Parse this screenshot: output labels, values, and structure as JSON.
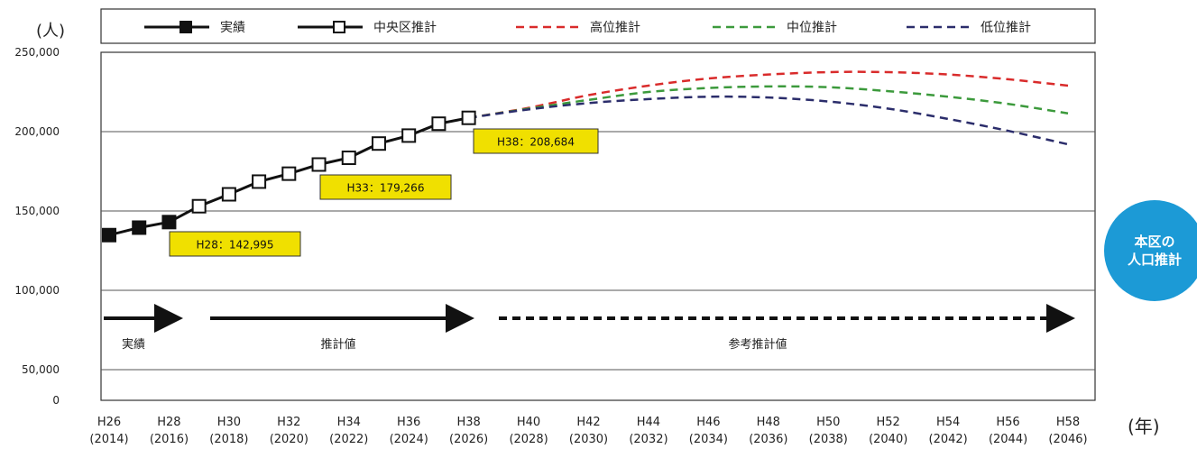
{
  "chart_data": {
    "type": "line",
    "y_unit_label": "(人)",
    "x_unit_label": "(年)",
    "ylim": [
      0,
      250000
    ],
    "y_ticks": [
      {
        "value": 0,
        "label": "0"
      },
      {
        "value": 50000,
        "label": "50,000"
      },
      {
        "value": 100000,
        "label": "100,000"
      },
      {
        "value": 150000,
        "label": "150,000"
      },
      {
        "value": 200000,
        "label": "200,000"
      },
      {
        "value": 250000,
        "label": "250,000"
      }
    ],
    "x_ticks": [
      {
        "era": "H26",
        "year": "(2014)"
      },
      {
        "era": "H28",
        "year": "(2016)"
      },
      {
        "era": "H30",
        "year": "(2018)"
      },
      {
        "era": "H32",
        "year": "(2020)"
      },
      {
        "era": "H34",
        "year": "(2022)"
      },
      {
        "era": "H36",
        "year": "(2024)"
      },
      {
        "era": "H38",
        "year": "(2026)"
      },
      {
        "era": "H40",
        "year": "(2028)"
      },
      {
        "era": "H42",
        "year": "(2030)"
      },
      {
        "era": "H44",
        "year": "(2032)"
      },
      {
        "era": "H46",
        "year": "(2034)"
      },
      {
        "era": "H48",
        "year": "(2036)"
      },
      {
        "era": "H50",
        "year": "(2038)"
      },
      {
        "era": "H52",
        "year": "(2040)"
      },
      {
        "era": "H54",
        "year": "(2042)"
      },
      {
        "era": "H56",
        "year": "(2044)"
      },
      {
        "era": "H58",
        "year": "(2046)"
      }
    ],
    "series": [
      {
        "name": "実績",
        "style": "solid-filled-square",
        "color": "#111111",
        "points": [
          [
            2014,
            134800
          ],
          [
            2015,
            139500
          ],
          [
            2016,
            142995
          ]
        ]
      },
      {
        "name": "中央区推計",
        "style": "solid-open-square",
        "color": "#111111",
        "points": [
          [
            2016,
            142995
          ],
          [
            2017,
            153000
          ],
          [
            2018,
            160500
          ],
          [
            2019,
            168500
          ],
          [
            2020,
            173500
          ],
          [
            2021,
            179266
          ],
          [
            2022,
            183500
          ],
          [
            2023,
            192500
          ],
          [
            2024,
            197500
          ],
          [
            2025,
            205000
          ],
          [
            2026,
            208684
          ]
        ]
      },
      {
        "name": "高位推計",
        "style": "dashed",
        "color": "#d92b2b",
        "points": [
          [
            2026,
            208684
          ],
          [
            2028,
            215000
          ],
          [
            2030,
            223000
          ],
          [
            2032,
            229000
          ],
          [
            2034,
            233500
          ],
          [
            2036,
            236000
          ],
          [
            2038,
            237500
          ],
          [
            2040,
            237500
          ],
          [
            2042,
            236000
          ],
          [
            2044,
            233000
          ],
          [
            2046,
            229000
          ]
        ]
      },
      {
        "name": "中位推計",
        "style": "dashed",
        "color": "#3c9a3c",
        "points": [
          [
            2026,
            208684
          ],
          [
            2028,
            214500
          ],
          [
            2030,
            220000
          ],
          [
            2032,
            225000
          ],
          [
            2034,
            227500
          ],
          [
            2036,
            228500
          ],
          [
            2038,
            228000
          ],
          [
            2040,
            225500
          ],
          [
            2042,
            222000
          ],
          [
            2044,
            217500
          ],
          [
            2046,
            211500
          ]
        ]
      },
      {
        "name": "低位推計",
        "style": "dashed",
        "color": "#2b2d6b",
        "points": [
          [
            2026,
            208684
          ],
          [
            2028,
            214000
          ],
          [
            2030,
            218000
          ],
          [
            2032,
            220500
          ],
          [
            2034,
            222000
          ],
          [
            2036,
            221500
          ],
          [
            2038,
            219000
          ],
          [
            2040,
            214500
          ],
          [
            2042,
            208000
          ],
          [
            2044,
            200500
          ],
          [
            2046,
            192000
          ]
        ]
      }
    ],
    "annotations": [
      {
        "label": "H28：142,995",
        "x": 2016,
        "y": 142995
      },
      {
        "label": "H33：179,266",
        "x": 2021,
        "y": 179266
      },
      {
        "label": "H38：208,684",
        "x": 2026,
        "y": 208684
      }
    ],
    "phases": [
      {
        "label": "実績",
        "from": 2014,
        "to": 2016,
        "style": "solid"
      },
      {
        "label": "推計値",
        "from": 2017,
        "to": 2026,
        "style": "solid"
      },
      {
        "label": "参考推計値",
        "from": 2026,
        "to": 2046,
        "style": "dashed"
      }
    ],
    "legend_position": "top",
    "grid": "horizontal"
  },
  "badge": {
    "line1": "本区の",
    "line2": "人口推計"
  },
  "colors": {
    "badge": "#1c9ad6",
    "annotation_fill": "#f0e000"
  }
}
